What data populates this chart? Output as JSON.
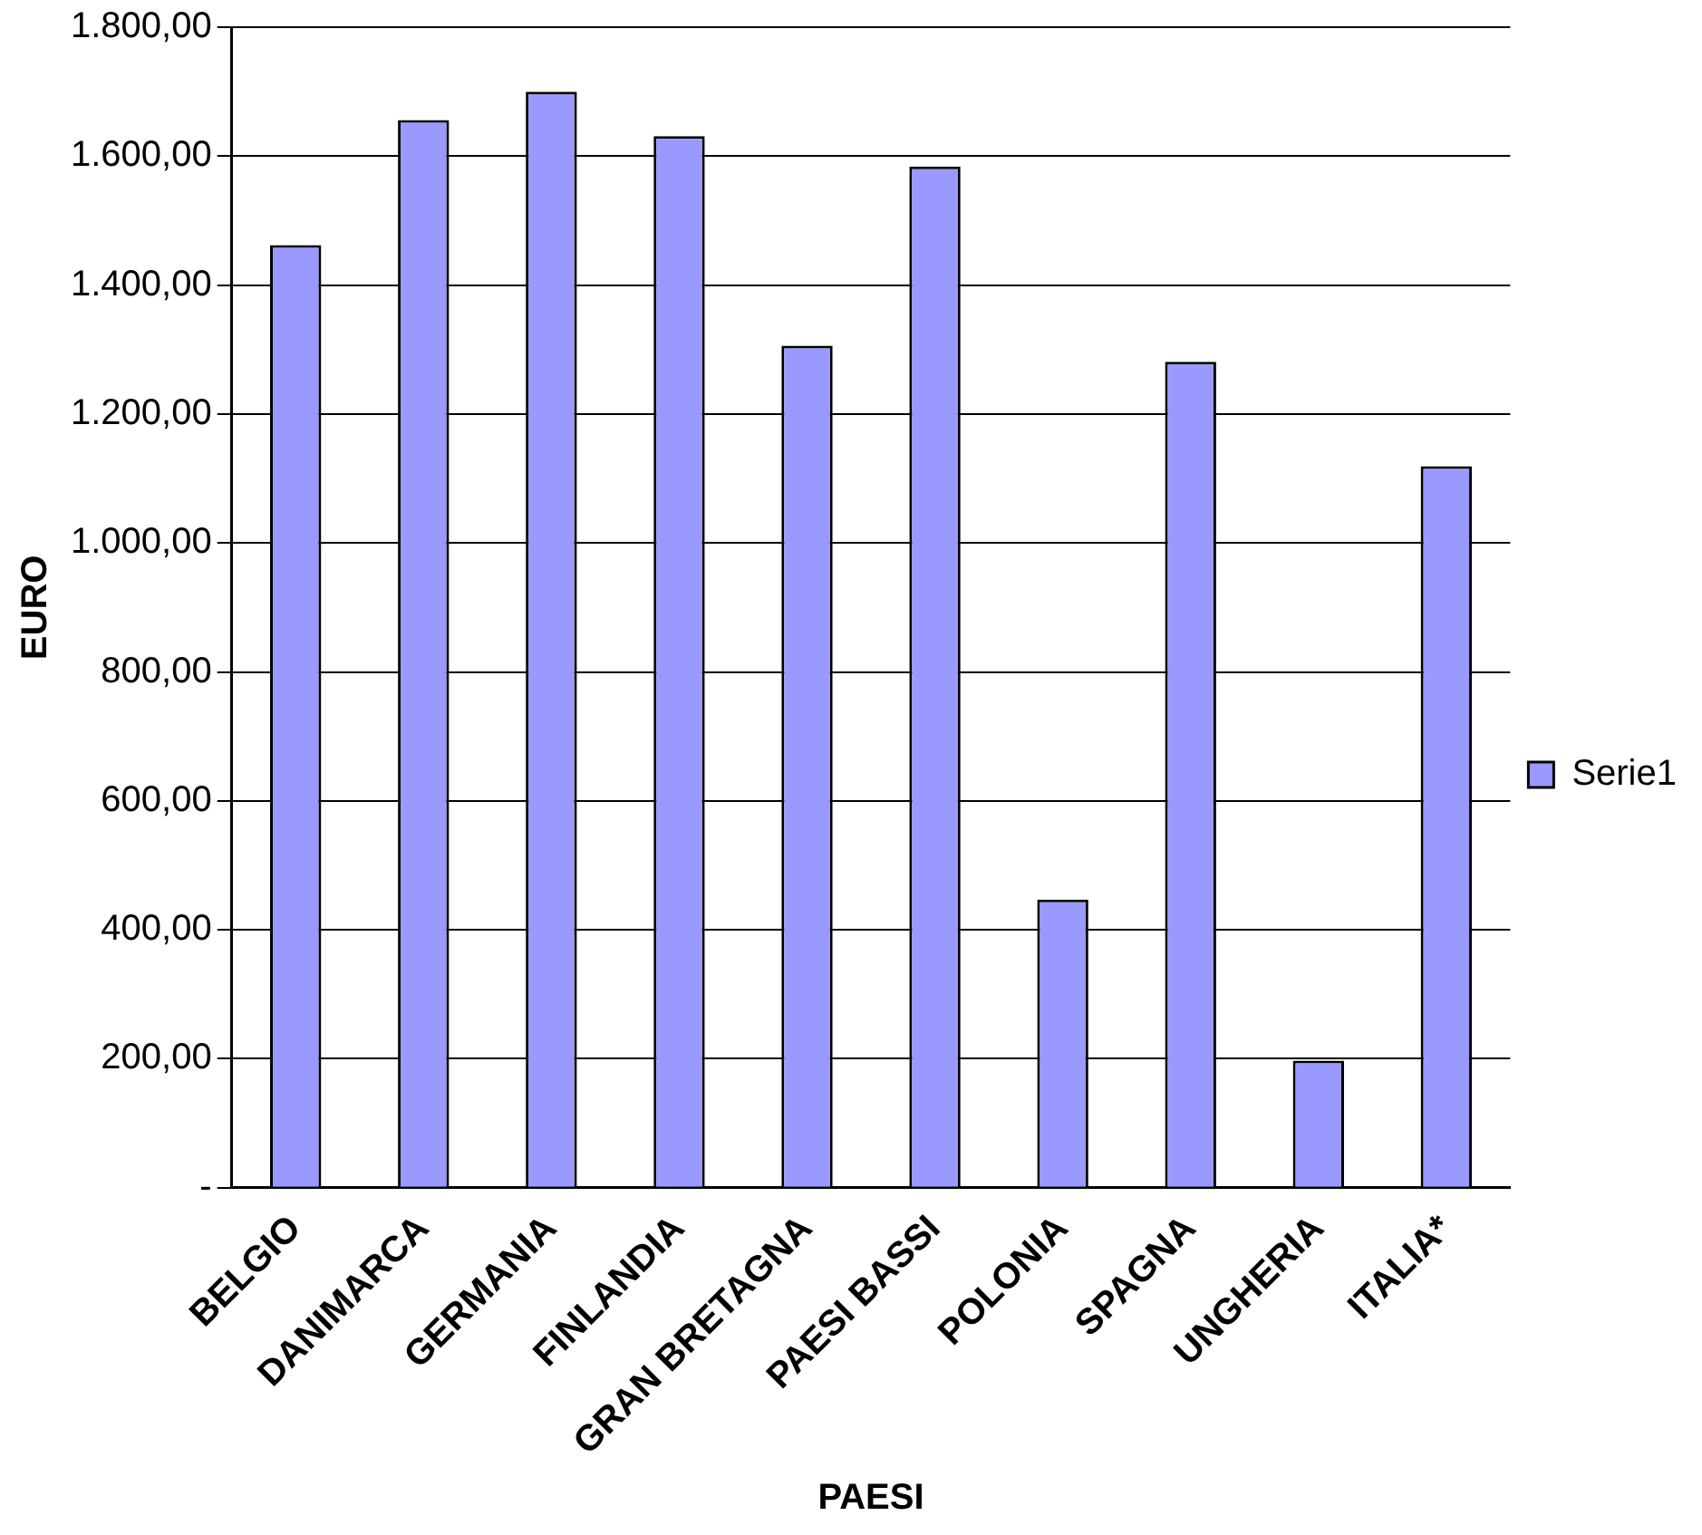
{
  "chart_data": {
    "type": "bar",
    "xlabel": "PAESI",
    "ylabel": "EURO",
    "categories": [
      "BELGIO",
      "DANIMARCA",
      "GERMANIA",
      "FINLANDIA",
      "GRAN BRETAGNA",
      "PAESI BASSI",
      "POLONIA",
      "SPAGNA",
      "UNGHERIA",
      "ITALIA*"
    ],
    "series": [
      {
        "name": "Serie1",
        "color": "#9999ff",
        "values": [
          1462,
          1656,
          1700,
          1631,
          1306,
          1584,
          447,
          1281,
          197,
          1119
        ]
      }
    ],
    "ylim": [
      0,
      1800
    ],
    "yticks": [
      {
        "value": 0,
        "label": "-"
      },
      {
        "value": 200,
        "label": "200,00"
      },
      {
        "value": 400,
        "label": "400,00"
      },
      {
        "value": 600,
        "label": "600,00"
      },
      {
        "value": 800,
        "label": "800,00"
      },
      {
        "value": 1000,
        "label": "1.000,00"
      },
      {
        "value": 1200,
        "label": "1.200,00"
      },
      {
        "value": 1400,
        "label": "1.400,00"
      },
      {
        "value": 1600,
        "label": "1.600,00"
      },
      {
        "value": 1800,
        "label": "1.800,00"
      }
    ],
    "grid": "y",
    "legend": "right"
  }
}
